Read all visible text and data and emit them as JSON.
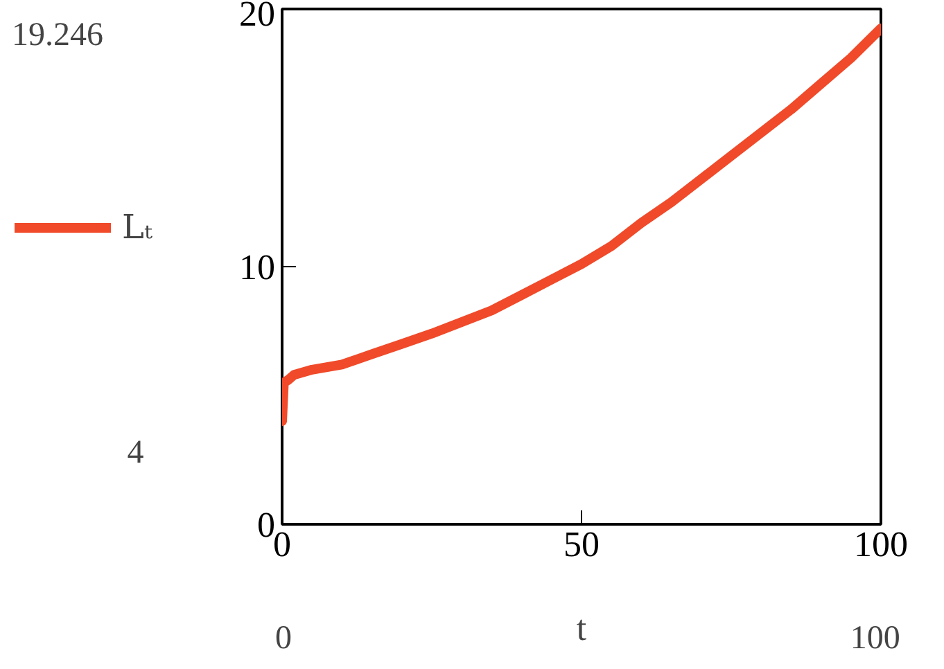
{
  "chart_data": {
    "type": "line",
    "xlabel": "t",
    "x": [
      0,
      0.3,
      1,
      2,
      5,
      10,
      15,
      20,
      25,
      30,
      35,
      40,
      45,
      50,
      55,
      60,
      65,
      70,
      75,
      80,
      85,
      90,
      95,
      100
    ],
    "series": [
      {
        "name": "Lₜ",
        "color": "#f04a2a",
        "values": [
          4,
          5.5,
          5.6,
          5.8,
          6.0,
          6.2,
          6.6,
          7.0,
          7.4,
          7.85,
          8.3,
          8.9,
          9.5,
          10.1,
          10.8,
          11.7,
          12.5,
          13.4,
          14.3,
          15.2,
          16.1,
          17.1,
          18.1,
          19.246
        ]
      }
    ],
    "xlim": [
      0,
      100
    ],
    "xticks": [
      0,
      50,
      100
    ],
    "ylim": [
      0,
      20
    ],
    "yticks": [
      0,
      10,
      20
    ],
    "grid": false,
    "legend": "left",
    "line_style": "solid",
    "marker": "none",
    "annotations": [
      "19.246",
      "4",
      "0",
      "100"
    ]
  }
}
